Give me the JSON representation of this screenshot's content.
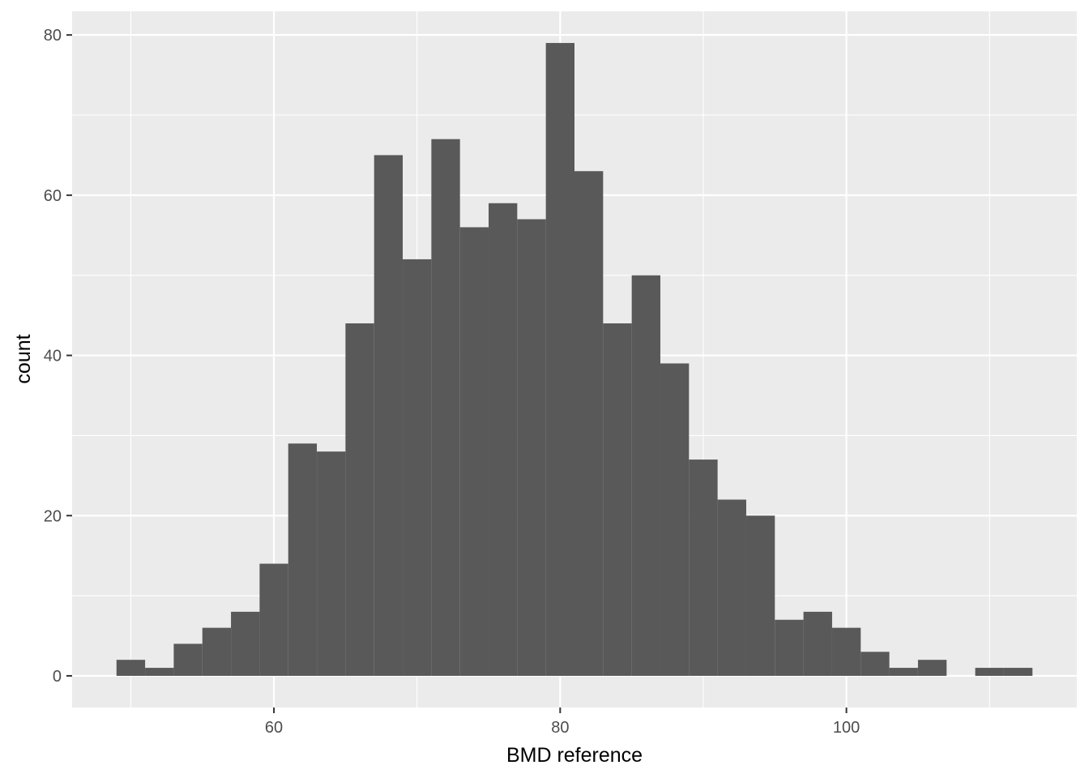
{
  "chart_data": {
    "type": "bar",
    "subtype": "histogram",
    "title": "",
    "xlabel": "BMD reference",
    "ylabel": "count",
    "xlim": [
      45.9,
      116.1
    ],
    "ylim": [
      -3.95,
      82.95
    ],
    "x_ticks": [
      60,
      80,
      100
    ],
    "y_ticks": [
      0,
      20,
      40,
      60,
      80
    ],
    "grid": true,
    "legend": "none",
    "bin_width": 2,
    "bins": [
      {
        "x": 50,
        "count": 2
      },
      {
        "x": 52,
        "count": 1
      },
      {
        "x": 54,
        "count": 4
      },
      {
        "x": 56,
        "count": 6
      },
      {
        "x": 58,
        "count": 8
      },
      {
        "x": 60,
        "count": 14
      },
      {
        "x": 62,
        "count": 29
      },
      {
        "x": 64,
        "count": 28
      },
      {
        "x": 66,
        "count": 44
      },
      {
        "x": 68,
        "count": 65
      },
      {
        "x": 70,
        "count": 52
      },
      {
        "x": 72,
        "count": 67
      },
      {
        "x": 74,
        "count": 56
      },
      {
        "x": 76,
        "count": 59
      },
      {
        "x": 78,
        "count": 57
      },
      {
        "x": 80,
        "count": 79
      },
      {
        "x": 82,
        "count": 63
      },
      {
        "x": 84,
        "count": 44
      },
      {
        "x": 86,
        "count": 50
      },
      {
        "x": 88,
        "count": 39
      },
      {
        "x": 90,
        "count": 27
      },
      {
        "x": 92,
        "count": 22
      },
      {
        "x": 94,
        "count": 20
      },
      {
        "x": 96,
        "count": 7
      },
      {
        "x": 98,
        "count": 8
      },
      {
        "x": 100,
        "count": 6
      },
      {
        "x": 102,
        "count": 3
      },
      {
        "x": 104,
        "count": 1
      },
      {
        "x": 106,
        "count": 2
      },
      {
        "x": 108,
        "count": 0
      },
      {
        "x": 110,
        "count": 1
      },
      {
        "x": 112,
        "count": 1
      }
    ],
    "colors": {
      "panel_background": "#ebebeb",
      "grid_major": "#ffffff",
      "bar_fill": "#595959",
      "tick_color": "#333333"
    }
  }
}
